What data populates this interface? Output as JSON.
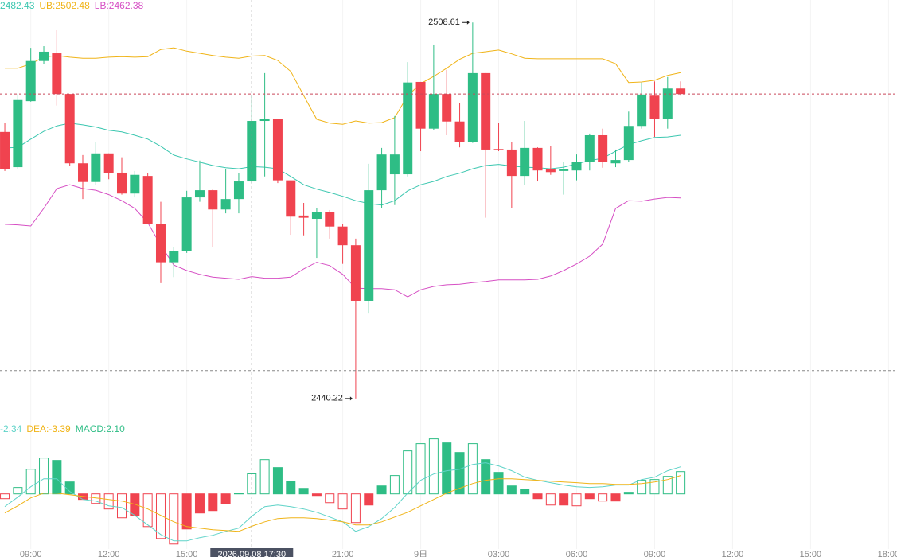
{
  "chart_data": [
    {
      "type": "candlestick",
      "xlim": [
        -0.37,
        68.65
      ],
      "ylim": [
        2436.0,
        2512.7
      ],
      "up_color": "#2ebd85",
      "down_color": "#f0434f",
      "open": [
        2488.7,
        2482.3,
        2494.3,
        2501.6,
        2503.0,
        2495.6,
        2483.0,
        2479.6,
        2484.8,
        2481.3,
        2477.5,
        2480.7,
        2472.0,
        2465.0,
        2467.0,
        2476.8,
        2478.1,
        2474.6,
        2476.5,
        2479.7,
        2490.7,
        2491.0,
        2479.9,
        2473.5,
        2472.9,
        2474.2,
        2471.5,
        2468.1,
        2458.0,
        2478.1,
        2481.0,
        2481.0,
        2497.8,
        2489.3,
        2495.6,
        2490.6,
        2486.9,
        2499.4,
        2485.6,
        2485.5,
        2480.7,
        2485.8,
        2481.9,
        2481.6,
        2481.7,
        2483.3,
        2488.1,
        2483.0,
        2483.6,
        2489.8,
        2495.3,
        2491.0,
        2496.6
      ],
      "high": [
        2490.3,
        2495.6,
        2504.0,
        2504.3,
        2507.2,
        2495.6,
        2484.5,
        2486.9,
        2484.8,
        2484.1,
        2481.6,
        2481.2,
        2476.0,
        2467.8,
        2478.0,
        2483.5,
        2478.3,
        2482.0,
        2481.2,
        2495.3,
        2499.4,
        2491.0,
        2479.9,
        2475.8,
        2474.8,
        2474.5,
        2471.9,
        2469.3,
        2482.9,
        2485.8,
        2491.6,
        2501.4,
        2497.8,
        2504.6,
        2500.0,
        2493.9,
        2508.61,
        2499.4,
        2490.3,
        2486.9,
        2490.7,
        2485.9,
        2486.2,
        2483.2,
        2484.6,
        2488.4,
        2489.3,
        2485.5,
        2492.4,
        2497.7,
        2497.9,
        2498.7,
        2497.9
      ],
      "low": [
        2481.6,
        2482.0,
        2494.2,
        2501.1,
        2493.5,
        2482.6,
        2476.5,
        2479.1,
        2480.1,
        2477.3,
        2476.8,
        2471.9,
        2461.2,
        2462.3,
        2466.7,
        2476.0,
        2467.7,
        2473.9,
        2473.9,
        2479.4,
        2480.6,
        2479.4,
        2470.0,
        2469.9,
        2465.8,
        2469.3,
        2464.7,
        2440.22,
        2455.8,
        2474.8,
        2475.4,
        2480.6,
        2485.2,
        2489.0,
        2488.1,
        2485.9,
        2486.7,
        2473.1,
        2485.2,
        2474.8,
        2479.1,
        2479.7,
        2480.9,
        2477.3,
        2479.9,
        2481.7,
        2482.2,
        2482.3,
        2483.3,
        2489.3,
        2487.8,
        2489.3,
        2495.3
      ],
      "close": [
        2482.0,
        2494.5,
        2501.6,
        2503.3,
        2495.6,
        2483.0,
        2479.6,
        2484.8,
        2481.2,
        2477.5,
        2480.9,
        2472.0,
        2465.0,
        2467.0,
        2476.8,
        2478.1,
        2474.6,
        2476.5,
        2479.7,
        2490.7,
        2491.1,
        2479.9,
        2473.3,
        2473.1,
        2474.2,
        2471.5,
        2468.1,
        2458.0,
        2478.1,
        2484.6,
        2484.6,
        2497.7,
        2489.3,
        2495.6,
        2490.6,
        2486.9,
        2499.4,
        2485.5,
        2485.4,
        2480.7,
        2485.8,
        2481.7,
        2481.4,
        2481.9,
        2483.3,
        2488.1,
        2483.3,
        2483.6,
        2489.8,
        2495.5,
        2491.0,
        2496.6,
        2495.6
      ],
      "series": [
        {
          "label": "2482.43",
          "color": "#3cc7b0",
          "values": [
            2485.8,
            2485.9,
            2487.4,
            2488.8,
            2489.8,
            2490.3,
            2490.0,
            2489.6,
            2489.0,
            2488.7,
            2488.1,
            2487.4,
            2486.1,
            2484.5,
            2483.8,
            2483.2,
            2482.6,
            2482.2,
            2482.0,
            2482.4,
            2482.3,
            2482.0,
            2480.6,
            2479.1,
            2478.3,
            2477.7,
            2477.0,
            2476.2,
            2475.7,
            2475.4,
            2476.2,
            2478.0,
            2479.1,
            2479.7,
            2480.6,
            2481.2,
            2482.0,
            2482.6,
            2482.8,
            2482.5,
            2482.3,
            2482.2,
            2482.0,
            2482.3,
            2482.9,
            2483.5,
            2483.9,
            2485.2,
            2486.4,
            2487.1,
            2487.7,
            2487.8,
            2488.1
          ]
        },
        {
          "label": "UB:2502.48",
          "color": "#f0b418",
          "values": [
            2500.3,
            2500.3,
            2501.1,
            2502.3,
            2502.6,
            2502.3,
            2502.1,
            2502.1,
            2502.3,
            2502.4,
            2502.3,
            2502.4,
            2503.7,
            2504.0,
            2503.4,
            2503.0,
            2502.6,
            2502.3,
            2502.1,
            2502.5,
            2502.6,
            2501.7,
            2499.7,
            2495.3,
            2491.0,
            2490.3,
            2490.1,
            2490.7,
            2490.3,
            2490.4,
            2491.3,
            2495.3,
            2497.5,
            2498.8,
            2500.3,
            2501.9,
            2503.0,
            2503.3,
            2503.6,
            2502.9,
            2502.1,
            2502.0,
            2502.0,
            2502.0,
            2502.0,
            2502.0,
            2502.0,
            2501.1,
            2497.7,
            2497.8,
            2498.1,
            2499.0,
            2499.5
          ]
        },
        {
          "label": "LB:2462.38",
          "color": "#d64fc4",
          "values": [
            2471.9,
            2471.8,
            2471.6,
            2474.8,
            2478.4,
            2479.1,
            2478.4,
            2478.1,
            2477.3,
            2476.2,
            2474.8,
            2472.2,
            2468.1,
            2464.5,
            2463.5,
            2462.8,
            2462.3,
            2462.1,
            2461.9,
            2462.4,
            2462.1,
            2462.1,
            2462.3,
            2463.8,
            2465.0,
            2464.4,
            2462.8,
            2460.3,
            2460.2,
            2460.2,
            2460.0,
            2458.7,
            2460.0,
            2460.6,
            2460.9,
            2461.0,
            2461.3,
            2461.5,
            2461.8,
            2461.8,
            2461.8,
            2461.9,
            2462.5,
            2463.5,
            2464.7,
            2466.1,
            2468.3,
            2474.8,
            2476.2,
            2476.1,
            2476.5,
            2476.8,
            2476.7
          ]
        }
      ],
      "max_marker": 2508.61,
      "min_marker": 2440.22,
      "last_price": 2495.6,
      "crosshair": {
        "value": 19,
        "label": "2026.09.08 17:30",
        "price": 2445.3
      },
      "xticks": [
        {
          "value": 2,
          "label": "09:00"
        },
        {
          "value": 8,
          "label": "12:00"
        },
        {
          "value": 14,
          "label": "15:00"
        },
        {
          "value": 26,
          "label": "21:00"
        },
        {
          "value": 32,
          "label": "9日"
        },
        {
          "value": 38,
          "label": "03:00"
        },
        {
          "value": 44,
          "label": "06:00"
        },
        {
          "value": 50,
          "label": "09:00"
        },
        {
          "value": 56,
          "label": "12:00"
        },
        {
          "value": 62,
          "label": "15:00"
        },
        {
          "value": 68,
          "label": "18:00"
        }
      ]
    },
    {
      "type": "macd",
      "ylim": [
        -6.6,
        6.3
      ],
      "up_color": "#2ebd85",
      "down_color": "#f0434f",
      "hist_label": "MACD:2.10",
      "hist_label_color": "#2ebd85",
      "values": [
        -0.5,
        0.67,
        2.58,
        3.75,
        3.5,
        1.25,
        -0.58,
        -1.0,
        -1.58,
        -2.5,
        -2.25,
        -3.42,
        -4.67,
        -5.25,
        -3.67,
        -2.0,
        -1.75,
        -1.0,
        0.08,
        2.1,
        3.58,
        2.75,
        1.33,
        0.58,
        -0.17,
        -0.92,
        -1.58,
        -3.0,
        -1.17,
        0.83,
        1.92,
        4.5,
        5.25,
        5.75,
        5.33,
        4.33,
        5.25,
        3.58,
        2.25,
        0.83,
        0.5,
        -0.5,
        -1.17,
        -1.17,
        -1.25,
        -0.5,
        -0.75,
        -0.75,
        0.17,
        1.42,
        1.5,
        1.83,
        2.33
      ],
      "series": [
        {
          "label": "-2.34",
          "color": "#5fd3c8",
          "values": [
            -1.33,
            -0.33,
            0.75,
            1.58,
            1.58,
            0.25,
            -0.58,
            -0.75,
            -1.25,
            -1.42,
            -2.25,
            -3.25,
            -4.25,
            -4.92,
            -4.92,
            -4.58,
            -4.33,
            -3.92,
            -3.58,
            -2.34,
            -1.33,
            -1.17,
            -1.33,
            -1.58,
            -1.92,
            -2.42,
            -2.92,
            -3.92,
            -3.42,
            -2.58,
            -1.42,
            0.08,
            1.42,
            2.08,
            2.42,
            2.58,
            3.08,
            3.25,
            2.92,
            2.42,
            1.75,
            1.42,
            1.17,
            0.92,
            0.75,
            0.67,
            0.75,
            0.92,
            0.92,
            1.5,
            1.75,
            2.42,
            2.83
          ]
        },
        {
          "label": "DEA:-3.39",
          "color": "#f0b418",
          "values": [
            -2.0,
            -1.25,
            -0.42,
            0.08,
            0.08,
            -0.08,
            -0.25,
            -0.42,
            -0.58,
            -0.75,
            -1.08,
            -1.58,
            -2.25,
            -2.92,
            -3.42,
            -3.58,
            -3.75,
            -3.83,
            -3.92,
            -3.39,
            -2.92,
            -2.58,
            -2.5,
            -2.5,
            -2.58,
            -2.75,
            -2.92,
            -3.25,
            -3.25,
            -2.92,
            -2.42,
            -1.92,
            -1.25,
            -0.58,
            0.08,
            0.58,
            1.08,
            1.42,
            1.58,
            1.58,
            1.5,
            1.42,
            1.33,
            1.25,
            1.17,
            1.08,
            1.08,
            1.0,
            1.0,
            1.08,
            1.25,
            1.5,
            1.92
          ]
        }
      ]
    }
  ]
}
